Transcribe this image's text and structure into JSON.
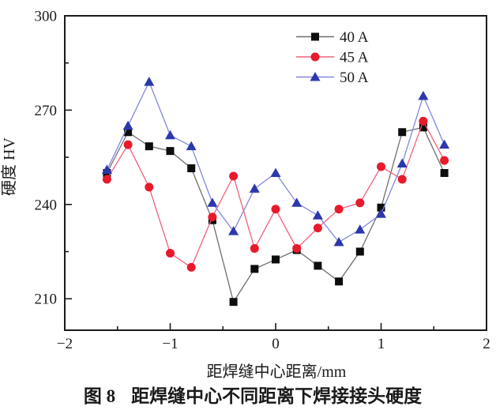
{
  "figure": {
    "caption_label": "图 8",
    "caption_text": "距焊缝中心不同距离下焊接接头硬度"
  },
  "chart_data": {
    "type": "line",
    "title": "",
    "xlabel": "距焊缝中心距离/mm",
    "ylabel": "硬度 HV",
    "xlim": [
      -2,
      2
    ],
    "ylim": [
      200,
      300
    ],
    "grid": false,
    "legend_position": "top-center-inside",
    "x_major_ticks": [
      -2,
      -1,
      0,
      1,
      2
    ],
    "x_tick_labels": [
      "−2",
      "−1",
      "0",
      "1",
      "2"
    ],
    "x_minor_ticks": [
      -1.5,
      -0.5,
      0.5,
      1.5
    ],
    "y_major_ticks": [
      210,
      240,
      270,
      300
    ],
    "y_tick_labels": [
      "210",
      "240",
      "270",
      "300"
    ],
    "y_minor_ticks": [
      225,
      255,
      285
    ],
    "frame_color": "#1a1a1a",
    "x": [
      -1.6,
      -1.4,
      -1.2,
      -1.0,
      -0.8,
      -0.6,
      -0.4,
      -0.2,
      0,
      0.2,
      0.4,
      0.6,
      0.8,
      1.0,
      1.2,
      1.4,
      1.6
    ],
    "series": [
      {
        "name": "40 A",
        "marker": "square",
        "marker_color": "#0d0d0d",
        "line_color": "#6e6e6e",
        "values": [
          250,
          263,
          258.5,
          257,
          251.5,
          235,
          209,
          219.5,
          222.5,
          225.5,
          220.5,
          215.5,
          225,
          239,
          263,
          264.5,
          250
        ]
      },
      {
        "name": "45 A",
        "marker": "circle",
        "marker_color": "#e81a2c",
        "line_color": "#f0607a",
        "values": [
          248,
          259,
          245.5,
          224.5,
          220,
          236,
          249,
          226,
          238.5,
          226,
          232.5,
          238.5,
          240.5,
          252,
          248,
          266.5,
          254
        ]
      },
      {
        "name": "50 A",
        "marker": "triangle",
        "marker_color": "#2c38ac",
        "line_color": "#8288de",
        "values": [
          251,
          265,
          279,
          262,
          258.5,
          240.5,
          231.5,
          245,
          250,
          240.5,
          236.5,
          228,
          232,
          237,
          253,
          274.5,
          259
        ]
      }
    ]
  }
}
